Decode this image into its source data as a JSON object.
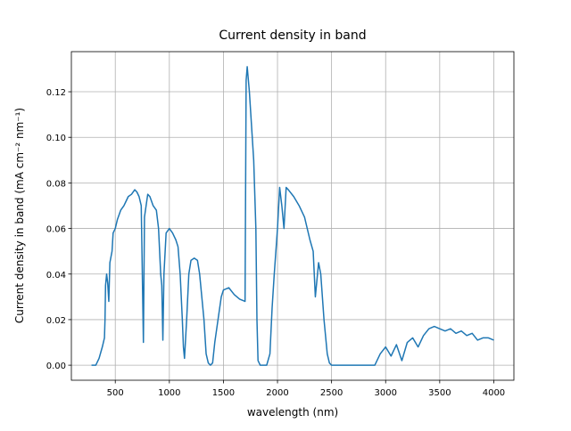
{
  "chart_data": {
    "type": "line",
    "title": "Current density in band",
    "x_label": "wavelength (nm)",
    "y_label": "Current density in band (mA cm⁻² nm⁻¹)",
    "color": "#1f77b4",
    "grid": true,
    "xlim": [
      94,
      4186
    ],
    "ylim": [
      -0.0066,
      0.1376
    ],
    "xticks": [
      500,
      1000,
      1500,
      2000,
      2500,
      3000,
      3500,
      4000
    ],
    "yticks": [
      {
        "value": 0,
        "label": "0.00"
      },
      {
        "value": 0.02,
        "label": "0.02"
      },
      {
        "value": 0.04,
        "label": "0.04"
      },
      {
        "value": 0.06,
        "label": "0.06"
      },
      {
        "value": 0.08,
        "label": "0.08"
      },
      {
        "value": 0.1,
        "label": "0.10"
      },
      {
        "value": 0.12,
        "label": "0.12"
      }
    ],
    "x": [
      280,
      320,
      350,
      380,
      400,
      405,
      410,
      420,
      430,
      440,
      450,
      470,
      480,
      500,
      520,
      550,
      580,
      600,
      620,
      650,
      680,
      700,
      720,
      740,
      760,
      770,
      800,
      820,
      850,
      880,
      900,
      920,
      930,
      940,
      950,
      970,
      1000,
      1030,
      1060,
      1080,
      1100,
      1120,
      1130,
      1140,
      1160,
      1180,
      1200,
      1230,
      1260,
      1280,
      1300,
      1320,
      1340,
      1360,
      1380,
      1400,
      1420,
      1450,
      1480,
      1500,
      1550,
      1600,
      1650,
      1700,
      1710,
      1720,
      1740,
      1760,
      1780,
      1800,
      1810,
      1820,
      1840,
      1900,
      1930,
      1950,
      1970,
      2000,
      2020,
      2040,
      2060,
      2080,
      2100,
      2150,
      2200,
      2250,
      2300,
      2330,
      2350,
      2380,
      2400,
      2430,
      2460,
      2480,
      2500,
      2900,
      2950,
      3000,
      3050,
      3100,
      3150,
      3200,
      3250,
      3300,
      3350,
      3400,
      3450,
      3500,
      3550,
      3600,
      3650,
      3700,
      3750,
      3800,
      3850,
      3900,
      3950,
      4000
    ],
    "values": [
      0,
      0,
      0.003,
      0.008,
      0.012,
      0.02,
      0.035,
      0.04,
      0.036,
      0.028,
      0.045,
      0.05,
      0.058,
      0.06,
      0.064,
      0.068,
      0.07,
      0.072,
      0.074,
      0.075,
      0.077,
      0.076,
      0.074,
      0.07,
      0.01,
      0.065,
      0.075,
      0.074,
      0.07,
      0.068,
      0.06,
      0.04,
      0.035,
      0.011,
      0.04,
      0.058,
      0.06,
      0.058,
      0.055,
      0.052,
      0.04,
      0.02,
      0.008,
      0.003,
      0.02,
      0.04,
      0.046,
      0.047,
      0.046,
      0.04,
      0.03,
      0.02,
      0.005,
      0.001,
      0,
      0.001,
      0.01,
      0.02,
      0.03,
      0.033,
      0.034,
      0.031,
      0.029,
      0.028,
      0.125,
      0.131,
      0.12,
      0.105,
      0.09,
      0.06,
      0.02,
      0.002,
      0,
      0,
      0.005,
      0.025,
      0.04,
      0.06,
      0.078,
      0.07,
      0.06,
      0.078,
      0.077,
      0.074,
      0.07,
      0.065,
      0.055,
      0.05,
      0.03,
      0.045,
      0.04,
      0.02,
      0.005,
      0.001,
      0,
      0,
      0.005,
      0.008,
      0.004,
      0.009,
      0.002,
      0.01,
      0.012,
      0.008,
      0.013,
      0.016,
      0.017,
      0.016,
      0.015,
      0.016,
      0.014,
      0.015,
      0.013,
      0.014,
      0.011,
      0.012,
      0.012,
      0.011
    ]
  }
}
